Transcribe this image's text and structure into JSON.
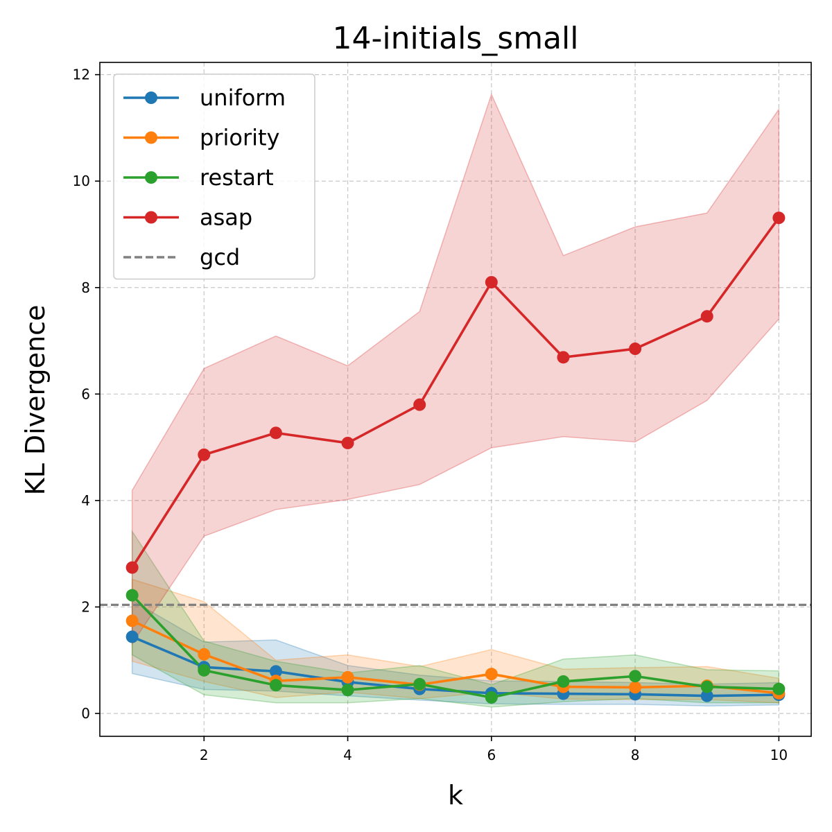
{
  "chart_data": {
    "type": "line",
    "title": "14-initials_small",
    "xlabel": "k",
    "ylabel": "KL Divergence",
    "xlim": [
      0.55,
      10.45
    ],
    "ylim": [
      -0.43,
      12.23
    ],
    "xticks": [
      2,
      4,
      6,
      8,
      10
    ],
    "yticks": [
      0,
      2,
      4,
      6,
      8,
      10,
      12
    ],
    "grid": true,
    "legend_position": "top-left",
    "x": [
      1,
      2,
      3,
      4,
      5,
      6,
      7,
      8,
      9,
      10
    ],
    "series": [
      {
        "name": "uniform",
        "color": "#1f77b4",
        "values": [
          1.44,
          0.87,
          0.79,
          0.59,
          0.46,
          0.38,
          0.37,
          0.36,
          0.33,
          0.35
        ],
        "lower": [
          0.75,
          0.45,
          0.42,
          0.33,
          0.25,
          0.18,
          0.17,
          0.17,
          0.14,
          0.16
        ],
        "upper": [
          2.12,
          1.34,
          1.38,
          0.9,
          0.72,
          0.61,
          0.6,
          0.58,
          0.55,
          0.58
        ]
      },
      {
        "name": "priority",
        "color": "#ff7f0e",
        "values": [
          1.74,
          1.11,
          0.61,
          0.68,
          0.54,
          0.74,
          0.5,
          0.49,
          0.52,
          0.38
        ],
        "lower": [
          0.98,
          0.6,
          0.3,
          0.4,
          0.28,
          0.4,
          0.27,
          0.26,
          0.26,
          0.2
        ],
        "upper": [
          2.52,
          2.1,
          1.0,
          1.1,
          0.88,
          1.2,
          0.83,
          0.86,
          0.88,
          0.66
        ]
      },
      {
        "name": "restart",
        "color": "#2ca02c",
        "values": [
          2.22,
          0.81,
          0.53,
          0.44,
          0.55,
          0.3,
          0.6,
          0.7,
          0.5,
          0.46
        ],
        "lower": [
          1.1,
          0.35,
          0.2,
          0.2,
          0.28,
          0.12,
          0.22,
          0.28,
          0.2,
          0.2
        ],
        "upper": [
          3.42,
          1.36,
          0.98,
          0.76,
          0.9,
          0.54,
          1.02,
          1.1,
          0.82,
          0.8
        ]
      },
      {
        "name": "asap",
        "color": "#d62728",
        "values": [
          2.74,
          4.86,
          5.27,
          5.08,
          5.8,
          8.1,
          6.69,
          6.85,
          7.46,
          9.31
        ],
        "lower": [
          1.31,
          3.33,
          3.83,
          4.02,
          4.3,
          4.99,
          5.2,
          5.1,
          5.88,
          7.41
        ],
        "upper": [
          4.19,
          6.48,
          7.09,
          6.53,
          7.55,
          11.63,
          8.6,
          9.14,
          9.4,
          11.35
        ]
      }
    ],
    "reference_lines": [
      {
        "name": "gcd",
        "orientation": "horizontal",
        "value": 2.04,
        "color": "#808080",
        "style": "dashed"
      }
    ]
  }
}
